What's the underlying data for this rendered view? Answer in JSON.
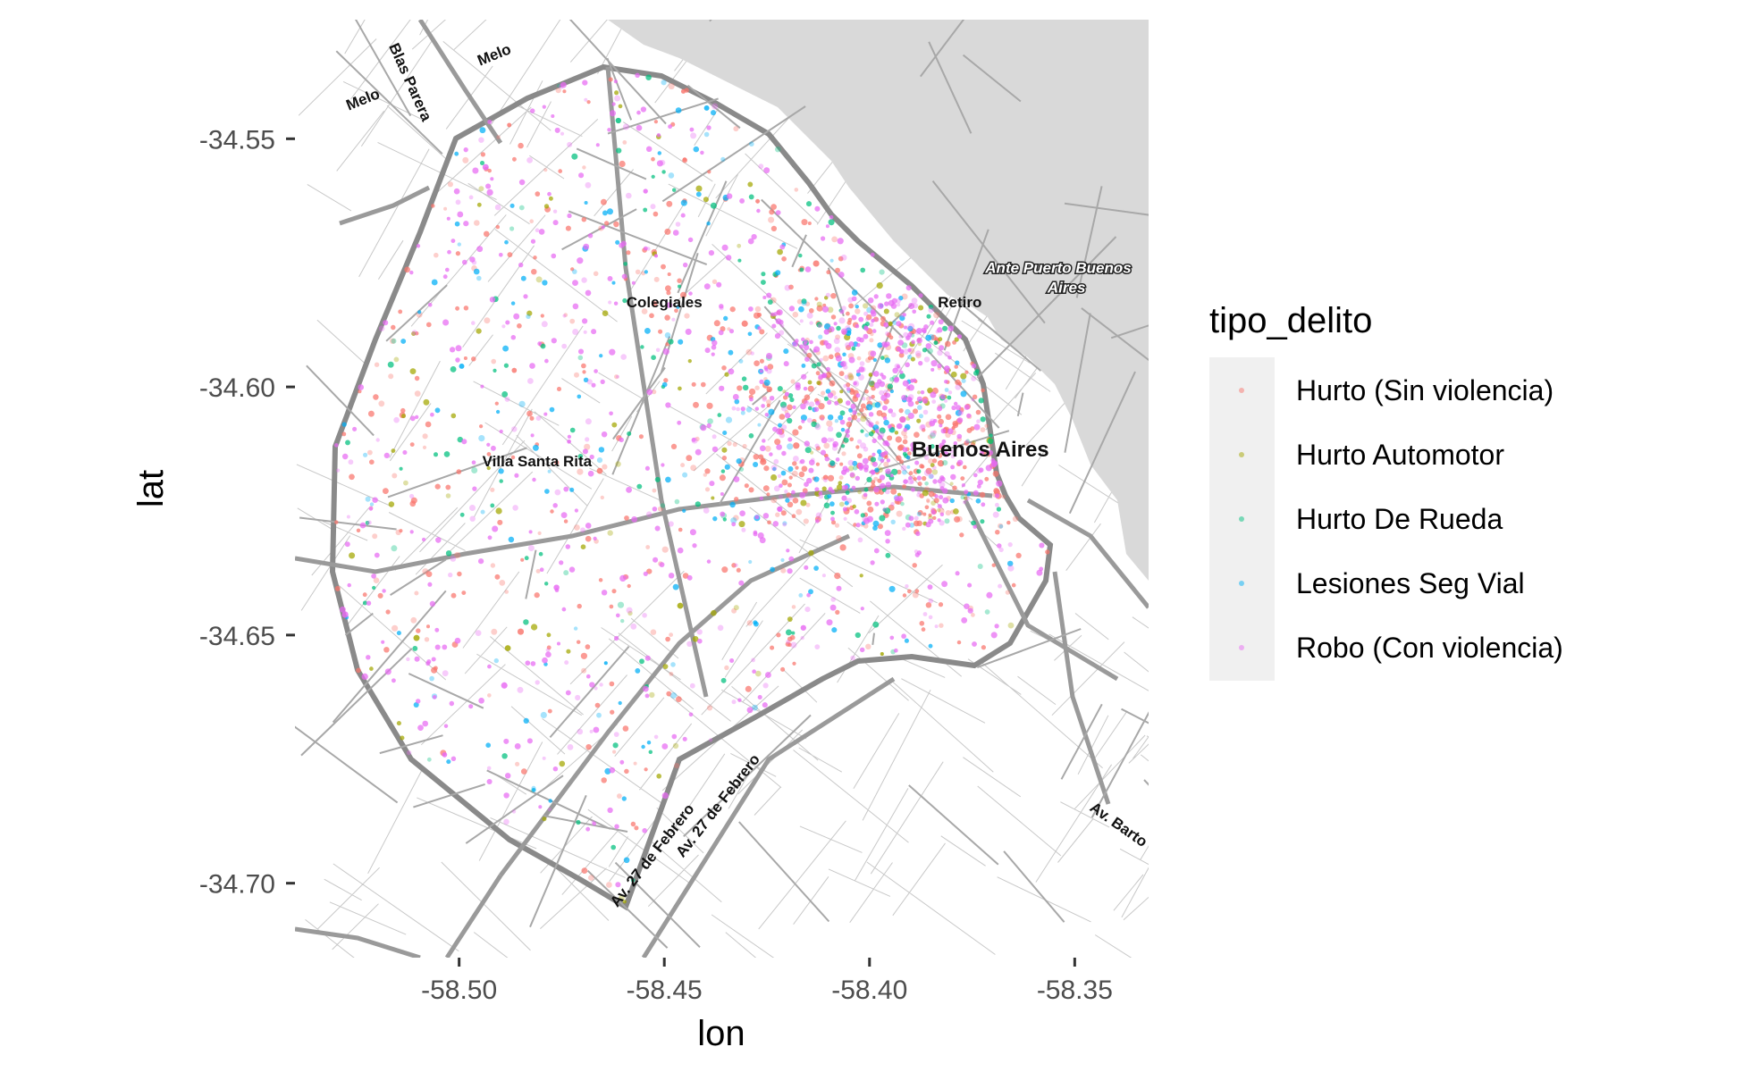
{
  "chart_data": {
    "type": "scatter",
    "xlabel": "lon",
    "ylabel": "lat",
    "xlim": [
      -58.54,
      -58.332
    ],
    "ylim": [
      -34.715,
      -34.526
    ],
    "x_ticks": [
      {
        "value": -58.5,
        "label": "-58.50"
      },
      {
        "value": -58.45,
        "label": "-58.45"
      },
      {
        "value": -58.4,
        "label": "-58.40"
      },
      {
        "value": -58.35,
        "label": "-58.35"
      }
    ],
    "y_ticks": [
      {
        "value": -34.55,
        "label": "-34.55"
      },
      {
        "value": -34.6,
        "label": "-34.60"
      },
      {
        "value": -34.65,
        "label": "-34.65"
      },
      {
        "value": -34.7,
        "label": "-34.70"
      }
    ],
    "grid": false,
    "legend": {
      "title": "tipo_delito",
      "placement": "right",
      "entries": [
        {
          "name": "Hurto (Sin violencia)",
          "color": "#F8766D"
        },
        {
          "name": "Hurto Automotor",
          "color": "#A3A500"
        },
        {
          "name": "Hurto De Rueda",
          "color": "#00BF7D"
        },
        {
          "name": "Lesiones Seg Vial",
          "color": "#00B0F6"
        },
        {
          "name": "Robo (Con violencia)",
          "color": "#E76BF3"
        }
      ]
    },
    "basemap": {
      "water_color": "#d9d9d9",
      "land_color": "#ffffff",
      "labels": [
        {
          "text": "Melo",
          "lon": -58.491,
          "lat": -34.534
        },
        {
          "text": "Melo",
          "lon": -58.523,
          "lat": -34.543
        },
        {
          "text": "Blas Parera",
          "lon": -58.513,
          "lat": -34.539
        },
        {
          "text": "Colegiales",
          "lon": -58.45,
          "lat": -34.584
        },
        {
          "text": "Retiro",
          "lon": -58.378,
          "lat": -34.584
        },
        {
          "text": "Ante Puerto Buenos",
          "lon": -58.354,
          "lat": -34.577
        },
        {
          "text": "Aires",
          "lon": -58.352,
          "lat": -34.581
        },
        {
          "text": "Villa Santa Rita",
          "lon": -58.481,
          "lat": -34.616
        },
        {
          "text": "Buenos Aires",
          "lon": -58.373,
          "lat": -34.614
        },
        {
          "text": "Av. 27 de Febrero",
          "lon": -58.436,
          "lat": -34.685
        },
        {
          "text": "Av. 27 de Febrero",
          "lon": -58.452,
          "lat": -34.695
        },
        {
          "text": "Av. Barto",
          "lon": -58.34,
          "lat": -34.689
        }
      ]
    }
  }
}
